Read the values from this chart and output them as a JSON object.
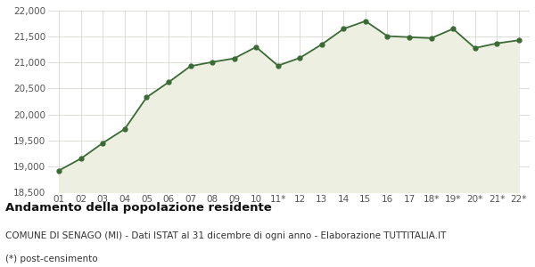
{
  "x_labels": [
    "01",
    "02",
    "03",
    "04",
    "05",
    "06",
    "07",
    "08",
    "09",
    "10",
    "11*",
    "12",
    "13",
    "14",
    "15",
    "16",
    "17",
    "18*",
    "19*",
    "20*",
    "21*",
    "22*"
  ],
  "y_values": [
    18920,
    19150,
    19450,
    19720,
    20330,
    20620,
    20930,
    21010,
    21080,
    21300,
    20940,
    21090,
    21350,
    21650,
    21800,
    21510,
    21490,
    21470,
    21650,
    21280,
    21370,
    21430
  ],
  "line_color": "#3a6b35",
  "fill_color": "#edf0e0",
  "marker_color": "#3a6b35",
  "figure_bg": "#ffffff",
  "plot_bg": "#ffffff",
  "grid_color": "#d0d0c8",
  "tick_color": "#555555",
  "ylim": [
    18500,
    22000
  ],
  "yticks": [
    18500,
    19000,
    19500,
    20000,
    20500,
    21000,
    21500,
    22000
  ],
  "title": "Andamento della popolazione residente",
  "subtitle": "COMUNE DI SENAGO (MI) - Dati ISTAT al 31 dicembre di ogni anno - Elaborazione TUTTITALIA.IT",
  "footnote": "(*) post-censimento",
  "title_fontsize": 9.5,
  "subtitle_fontsize": 7.5,
  "footnote_fontsize": 7.5,
  "axis_fontsize": 7.5,
  "line_width": 1.3,
  "marker_size": 3.5
}
